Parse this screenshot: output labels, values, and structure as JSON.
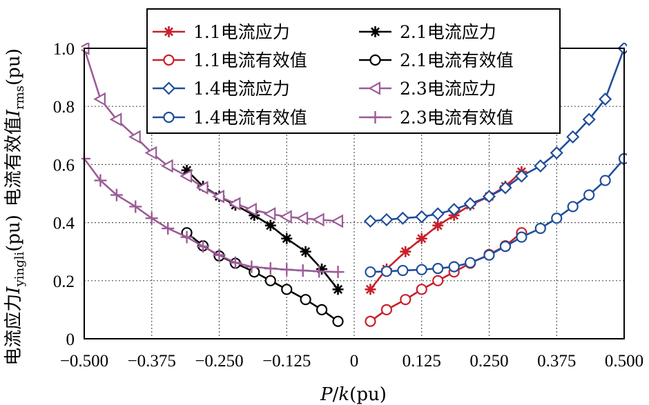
{
  "chart_data": {
    "type": "line",
    "xlabel": {
      "italic": "P",
      "mid": "/",
      "italic2": "k",
      "unit": "(pu)"
    },
    "ylabel": {
      "part1": "电流应力",
      "italic1": "I",
      "sub1": "yingli",
      "unit1": "(pu)",
      "part2": "电流有效值",
      "italic2": "I",
      "sub2": "rms",
      "unit2": "(pu)"
    },
    "xlim": [
      -0.5,
      0.5
    ],
    "ylim": [
      0,
      1.0
    ],
    "x_ticks": [
      -0.5,
      -0.375,
      -0.25,
      -0.125,
      0,
      0.125,
      0.25,
      0.375,
      0.5
    ],
    "x_tick_labels": [
      "−0.500",
      "−0.375",
      "−0.250",
      "−0.125",
      "0",
      "0.125",
      "0.250",
      "0.375",
      "0.500"
    ],
    "y_ticks": [
      0,
      0.2,
      0.4,
      0.6,
      0.8,
      1.0
    ],
    "y_tick_labels": [
      "0",
      "0.2",
      "0.4",
      "0.6",
      "0.8",
      "1.0"
    ],
    "grid": true,
    "legend_position": "top",
    "series": [
      {
        "name": "1.1电流应力",
        "color": "#c8202a",
        "marker": "star",
        "x": [
          0.03,
          0.06,
          0.095,
          0.125,
          0.155,
          0.185,
          0.215,
          0.25,
          0.28,
          0.31
        ],
        "y": [
          0.17,
          0.24,
          0.3,
          0.345,
          0.39,
          0.425,
          0.46,
          0.49,
          0.525,
          0.575
        ]
      },
      {
        "name": "2.1电流应力",
        "color": "#000000",
        "marker": "star",
        "x": [
          -0.31,
          -0.28,
          -0.25,
          -0.22,
          -0.185,
          -0.155,
          -0.125,
          -0.09,
          -0.06,
          -0.03
        ],
        "y": [
          0.58,
          0.525,
          0.49,
          0.46,
          0.425,
          0.39,
          0.345,
          0.3,
          0.24,
          0.17
        ]
      },
      {
        "name": "1.1电流有效值",
        "color": "#c8202a",
        "marker": "circle",
        "x": [
          0.03,
          0.06,
          0.095,
          0.125,
          0.155,
          0.185,
          0.215,
          0.25,
          0.28,
          0.31
        ],
        "y": [
          0.06,
          0.1,
          0.135,
          0.17,
          0.2,
          0.23,
          0.26,
          0.29,
          0.32,
          0.365
        ]
      },
      {
        "name": "2.1电流有效值",
        "color": "#000000",
        "marker": "circle",
        "x": [
          -0.31,
          -0.28,
          -0.25,
          -0.22,
          -0.185,
          -0.155,
          -0.125,
          -0.09,
          -0.06,
          -0.03
        ],
        "y": [
          0.365,
          0.32,
          0.285,
          0.26,
          0.23,
          0.2,
          0.17,
          0.135,
          0.1,
          0.06
        ]
      },
      {
        "name": "1.4电流应力",
        "color": "#1f4e9a",
        "marker": "diamond",
        "x": [
          0.03,
          0.06,
          0.09,
          0.125,
          0.155,
          0.185,
          0.215,
          0.25,
          0.28,
          0.31,
          0.345,
          0.375,
          0.405,
          0.435,
          0.465,
          0.5
        ],
        "y": [
          0.405,
          0.41,
          0.415,
          0.42,
          0.43,
          0.445,
          0.465,
          0.49,
          0.52,
          0.56,
          0.595,
          0.64,
          0.695,
          0.755,
          0.825,
          1.0
        ]
      },
      {
        "name": "2.3电流应力",
        "color": "#9b5c96",
        "marker": "triangle-left",
        "x": [
          -0.5,
          -0.47,
          -0.44,
          -0.405,
          -0.375,
          -0.345,
          -0.31,
          -0.28,
          -0.25,
          -0.22,
          -0.19,
          -0.155,
          -0.125,
          -0.095,
          -0.065,
          -0.03
        ],
        "y": [
          1.0,
          0.825,
          0.755,
          0.695,
          0.64,
          0.595,
          0.56,
          0.52,
          0.49,
          0.465,
          0.445,
          0.43,
          0.42,
          0.415,
          0.41,
          0.405
        ]
      },
      {
        "name": "1.4电流有效值",
        "color": "#1f4e9a",
        "marker": "circle",
        "x": [
          0.03,
          0.06,
          0.09,
          0.125,
          0.155,
          0.185,
          0.215,
          0.25,
          0.28,
          0.31,
          0.345,
          0.375,
          0.405,
          0.435,
          0.465,
          0.5
        ],
        "y": [
          0.23,
          0.232,
          0.235,
          0.238,
          0.242,
          0.248,
          0.262,
          0.288,
          0.318,
          0.35,
          0.38,
          0.415,
          0.455,
          0.495,
          0.545,
          0.62
        ]
      },
      {
        "name": "2.3电流有效值",
        "color": "#9b5c96",
        "marker": "plus",
        "x": [
          -0.5,
          -0.47,
          -0.44,
          -0.405,
          -0.375,
          -0.345,
          -0.31,
          -0.28,
          -0.25,
          -0.22,
          -0.19,
          -0.155,
          -0.125,
          -0.095,
          -0.065,
          -0.03
        ],
        "y": [
          0.62,
          0.545,
          0.495,
          0.455,
          0.415,
          0.38,
          0.35,
          0.318,
          0.288,
          0.262,
          0.248,
          0.242,
          0.238,
          0.235,
          0.232,
          0.23
        ]
      }
    ]
  }
}
